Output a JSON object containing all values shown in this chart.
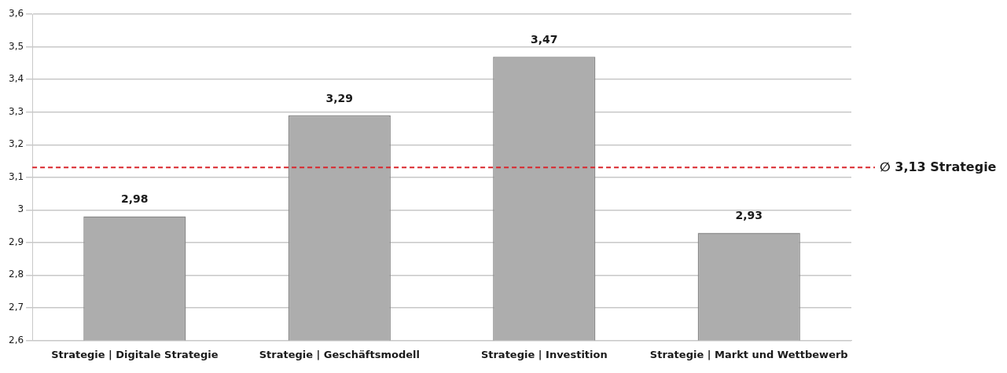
{
  "chart_data": {
    "type": "bar",
    "categories": [
      "Strategie | Digitale Strategie",
      "Strategie | Geschäftsmodell",
      "Strategie | Investition",
      "Strategie | Markt und Wettbewerb"
    ],
    "values": [
      2.98,
      3.29,
      3.47,
      2.93
    ],
    "value_labels": [
      "2,98",
      "3,29",
      "3,47",
      "2,93"
    ],
    "color": "#adadad",
    "ylim": [
      2.6,
      3.6
    ],
    "yticks": [
      {
        "value": 2.6,
        "label": "2,6"
      },
      {
        "value": 2.7,
        "label": "2,7"
      },
      {
        "value": 2.8,
        "label": "2,8"
      },
      {
        "value": 2.9,
        "label": "2,9"
      },
      {
        "value": 3,
        "label": "3"
      },
      {
        "value": 3.1,
        "label": "3,1"
      },
      {
        "value": 3.2,
        "label": "3,2"
      },
      {
        "value": 3.3,
        "label": "3,3"
      },
      {
        "value": 3.4,
        "label": "3,4"
      },
      {
        "value": 3.5,
        "label": "3,5"
      },
      {
        "value": 3.6,
        "label": "3,6"
      }
    ],
    "grid": "y",
    "legend": false,
    "ref_lines": [
      {
        "axis": "y",
        "value": 3.13,
        "label": "∅ 3,13 Strategie",
        "color": "#d9262c",
        "line_style": "dashed"
      }
    ]
  }
}
